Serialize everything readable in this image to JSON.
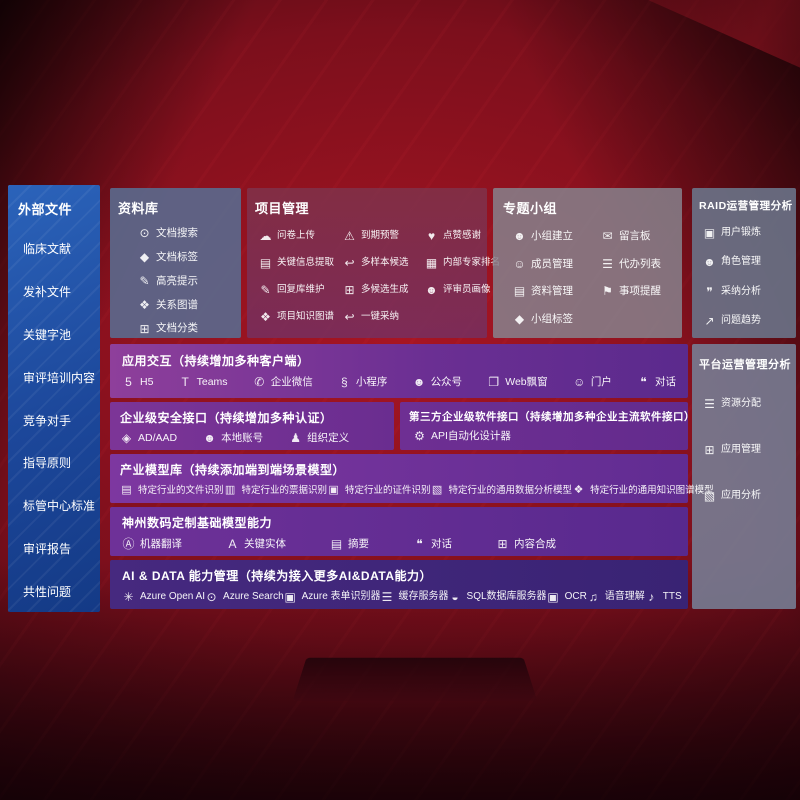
{
  "colors": {
    "background_red": "#7c0f1c",
    "sidebar_blue": "#1e4a9e",
    "panel_slate_blue": "#5a6a8e",
    "panel_maroon": "#80324a",
    "panel_grey": "#86838d",
    "panel_steel": "#6a7388",
    "band_purple_light": "#8e3f9b",
    "band_purple": "#6b2f93",
    "band_indigo": "#40267c",
    "text": "#ffffff"
  },
  "left_sidebar": {
    "title": "外部文件",
    "items": [
      "临床文献",
      "发补文件",
      "关键字池",
      "审评培训内容",
      "竞争对手",
      "指导原则",
      "标管中心标准",
      "审评报告",
      "共性问题"
    ]
  },
  "repository": {
    "title": "资料库",
    "items": [
      {
        "icon": "doc-search-icon",
        "label": "文档搜索"
      },
      {
        "icon": "doc-tag-icon",
        "label": "文档标签"
      },
      {
        "icon": "highlight-icon",
        "label": "高亮提示"
      },
      {
        "icon": "relation-graph-icon",
        "label": "关系图谱"
      },
      {
        "icon": "doc-classify-icon",
        "label": "文档分类"
      }
    ]
  },
  "project": {
    "title": "项目管理",
    "items": [
      {
        "icon": "upload-cloud-icon",
        "label": "问卷上传"
      },
      {
        "icon": "due-alarm-icon",
        "label": "到期预警"
      },
      {
        "icon": "thumbs-up-icon",
        "label": "点赞感谢"
      },
      {
        "icon": "key-info-extract-icon",
        "label": "关键信息提取"
      },
      {
        "icon": "multi-sample-icon",
        "label": "多样本候选"
      },
      {
        "icon": "expert-rank-icon",
        "label": "内部专家排名"
      },
      {
        "icon": "reply-library-icon",
        "label": "回复库维护"
      },
      {
        "icon": "multi-candidate-icon",
        "label": "多候选生成"
      },
      {
        "icon": "reviewer-portrait-icon",
        "label": "评审员画像"
      },
      {
        "icon": "project-knowledge-graph-icon",
        "label": "项目知识图谱"
      },
      {
        "icon": "one-click-adopt-icon",
        "label": "一键采纳"
      }
    ]
  },
  "groups": {
    "title": "专题小组",
    "items": [
      {
        "icon": "group-create-icon",
        "label": "小组建立"
      },
      {
        "icon": "message-board-icon",
        "label": "留言板"
      },
      {
        "icon": "member-manage-icon",
        "label": "成员管理"
      },
      {
        "icon": "todo-list-icon",
        "label": "代办列表"
      },
      {
        "icon": "material-manage-icon",
        "label": "资料管理"
      },
      {
        "icon": "reminder-bell-icon",
        "label": "事项提醒"
      },
      {
        "icon": "group-tag-icon",
        "label": "小组标签"
      }
    ]
  },
  "raid": {
    "title": "RAID运营管理分析",
    "items": [
      {
        "icon": "user-training-icon",
        "label": "用户锻炼"
      },
      {
        "icon": "role-manage-icon",
        "label": "角色管理"
      },
      {
        "icon": "adoption-analysis-icon",
        "label": "采纳分析"
      },
      {
        "icon": "issue-trend-icon",
        "label": "问题趋势"
      }
    ]
  },
  "platform": {
    "title": "平台运营管理分析",
    "items": [
      {
        "icon": "resource-allocation-icon",
        "label": "资源分配"
      },
      {
        "icon": "app-manage-icon",
        "label": "应用管理"
      },
      {
        "icon": "app-analysis-icon",
        "label": "应用分析"
      }
    ]
  },
  "interaction": {
    "title": "应用交互（持续增加多种客户端）",
    "items": [
      {
        "icon": "h5-icon",
        "label": "H5"
      },
      {
        "icon": "teams-icon",
        "label": "Teams"
      },
      {
        "icon": "wecom-icon",
        "label": "企业微信"
      },
      {
        "icon": "miniprogram-icon",
        "label": "小程序"
      },
      {
        "icon": "official-account-icon",
        "label": "公众号"
      },
      {
        "icon": "web-popup-icon",
        "label": "Web飘窗"
      },
      {
        "icon": "portal-icon",
        "label": "门户"
      },
      {
        "icon": "dialog-icon",
        "label": "对话"
      }
    ]
  },
  "security": {
    "title": "企业级安全接口（持续增加多种认证）",
    "items": [
      {
        "icon": "ad-aad-icon",
        "label": "AD/AAD"
      },
      {
        "icon": "local-account-icon",
        "label": "本地账号"
      },
      {
        "icon": "org-define-icon",
        "label": "组织定义"
      }
    ]
  },
  "third_party": {
    "title": "第三方企业级软件接口（持续增加多种企业主流软件接口）",
    "items": [
      {
        "icon": "api-designer-icon",
        "label": "API自动化设计器"
      }
    ]
  },
  "industry_models": {
    "title": "产业模型库（持续添加端到端场景模型）",
    "items": [
      {
        "icon": "file-recog-icon",
        "label": "特定行业的文件识别"
      },
      {
        "icon": "receipt-recog-icon",
        "label": "特定行业的票据识别"
      },
      {
        "icon": "cert-recog-icon",
        "label": "特定行业的证件识别"
      },
      {
        "icon": "data-analysis-model-icon",
        "label": "特定行业的通用数据分析模型"
      },
      {
        "icon": "knowledge-graph-model-icon",
        "label": "特定行业的通用知识图谱模型"
      }
    ]
  },
  "dc_base_models": {
    "title": "神州数码定制基础模型能力",
    "items": [
      {
        "icon": "machine-translate-icon",
        "label": "机器翻译"
      },
      {
        "icon": "key-entity-icon",
        "label": "关键实体"
      },
      {
        "icon": "summary-icon",
        "label": "摘要"
      },
      {
        "icon": "chat-icon",
        "label": "对话"
      },
      {
        "icon": "content-compose-icon",
        "label": "内容合成"
      }
    ]
  },
  "ai_data": {
    "title": "AI & DATA 能力管理（持续为接入更多AI&DATA能力）",
    "items": [
      {
        "icon": "azure-openai-icon",
        "label": "Azure Open AI"
      },
      {
        "icon": "azure-search-icon",
        "label": "Azure Search"
      },
      {
        "icon": "azure-form-recognizer-icon",
        "label": "Azure 表单识别器"
      },
      {
        "icon": "cache-server-icon",
        "label": "缓存服务器"
      },
      {
        "icon": "sql-db-server-icon",
        "label": "SQL数据库服务器"
      },
      {
        "icon": "ocr-icon",
        "label": "OCR"
      },
      {
        "icon": "speech-understand-icon",
        "label": "语音理解"
      },
      {
        "icon": "tts-icon",
        "label": "TTS"
      }
    ]
  },
  "icon_glyphs": {
    "doc-search-icon": "⊙",
    "doc-tag-icon": "◆",
    "highlight-icon": "✎",
    "relation-graph-icon": "❖",
    "doc-classify-icon": "⊞",
    "upload-cloud-icon": "☁",
    "due-alarm-icon": "⚠",
    "thumbs-up-icon": "♥",
    "key-info-extract-icon": "▤",
    "multi-sample-icon": "↩",
    "expert-rank-icon": "▦",
    "reply-library-icon": "✎",
    "multi-candidate-icon": "⊞",
    "reviewer-portrait-icon": "☻",
    "project-knowledge-graph-icon": "❖",
    "one-click-adopt-icon": "↩",
    "group-create-icon": "☻",
    "message-board-icon": "✉",
    "member-manage-icon": "☺",
    "todo-list-icon": "☰",
    "material-manage-icon": "▤",
    "reminder-bell-icon": "⚑",
    "group-tag-icon": "◆",
    "user-training-icon": "▣",
    "role-manage-icon": "☻",
    "adoption-analysis-icon": "❞",
    "issue-trend-icon": "↗",
    "resource-allocation-icon": "☰",
    "app-manage-icon": "⊞",
    "app-analysis-icon": "▧",
    "h5-icon": "5",
    "teams-icon": "T",
    "wecom-icon": "✆",
    "miniprogram-icon": "§",
    "official-account-icon": "☻",
    "web-popup-icon": "❐",
    "portal-icon": "☺",
    "dialog-icon": "❝",
    "ad-aad-icon": "◈",
    "local-account-icon": "☻",
    "org-define-icon": "♟",
    "api-designer-icon": "⚙",
    "file-recog-icon": "▤",
    "receipt-recog-icon": "▥",
    "cert-recog-icon": "▣",
    "data-analysis-model-icon": "▧",
    "knowledge-graph-model-icon": "❖",
    "machine-translate-icon": "Ⓐ",
    "key-entity-icon": "A",
    "summary-icon": "▤",
    "chat-icon": "❝",
    "content-compose-icon": "⊞",
    "azure-openai-icon": "✳",
    "azure-search-icon": "⊙",
    "azure-form-recognizer-icon": "▣",
    "cache-server-icon": "☰",
    "sql-db-server-icon": "◒",
    "ocr-icon": "▣",
    "speech-understand-icon": "♫",
    "tts-icon": "♪"
  }
}
